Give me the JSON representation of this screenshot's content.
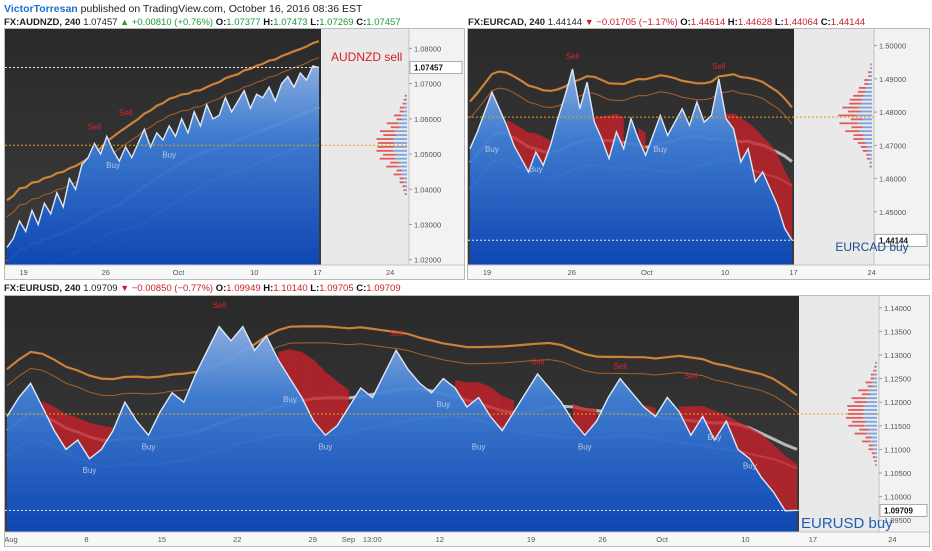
{
  "publish_bar": {
    "author": "VictorTorresan",
    "text": "published on TradingView.com, October 16, 2016 08:36 EST"
  },
  "charts": [
    {
      "id": "audnzd",
      "symbol": "FX:AUDNZD, 240",
      "last": "1.07457",
      "direction": "up",
      "change": "+0.00810 (+0.76%)",
      "open": "1.07377",
      "high": "1.07473",
      "low": "1.07269",
      "close": "1.07457",
      "annotation": "AUDNZD sell",
      "annotation_color": "#d81c22",
      "price_label": "1.07457",
      "y_ticks": [
        "1.08000",
        "1.07000",
        "1.06000",
        "1.05000",
        "1.04000",
        "1.03000",
        "1.02000"
      ],
      "x_ticks": [
        "19",
        "26",
        "Oct",
        "10",
        "17",
        "24"
      ],
      "signal_sell_label": "Sell",
      "signal_buy_label": "Buy",
      "chart_data": {
        "type": "line",
        "title": "FX:AUDNZD, 240",
        "ylim": [
          1.0185,
          1.0855
        ],
        "y_ticks": [
          1.08,
          1.07,
          1.06,
          1.05,
          1.04,
          1.03,
          1.02
        ],
        "x_ticks": [
          "19",
          "26",
          "Oct",
          "10",
          "17",
          "24"
        ],
        "dashed_level": 1.0525,
        "last_price": 1.07457,
        "series": [
          {
            "values": [
              1.0235,
              1.026,
              1.031,
              1.028,
              1.034,
              1.03,
              1.036,
              1.033,
              1.039,
              1.035,
              1.043,
              1.04,
              1.047,
              1.049,
              1.053,
              1.05,
              1.055,
              1.051,
              1.048,
              1.052,
              1.049,
              1.053,
              1.057,
              1.052,
              1.056,
              1.054,
              1.058,
              1.055,
              1.06,
              1.056,
              1.062,
              1.058,
              1.064,
              1.06,
              1.061,
              1.066,
              1.062,
              1.065,
              1.068,
              1.063,
              1.067,
              1.066,
              1.069,
              1.065,
              1.07,
              1.072,
              1.069,
              1.073,
              1.071,
              1.075,
              1.07457
            ]
          }
        ],
        "signals": [
          {
            "type": "Sell",
            "index": 14,
            "value": 1.057
          },
          {
            "type": "Sell",
            "index": 19,
            "value": 1.061
          },
          {
            "type": "Buy",
            "index": 17,
            "value": 1.046
          },
          {
            "type": "Buy",
            "index": 26,
            "value": 1.049
          }
        ]
      }
    },
    {
      "id": "eurcad",
      "symbol": "FX:EURCAD, 240",
      "last": "1.44144",
      "direction": "down",
      "change": "−0.01705 (−1.17%)",
      "open": "1.44614",
      "high": "1.44628",
      "low": "1.44064",
      "close": "1.44144",
      "annotation": "EURCAD buy",
      "annotation_color": "#1f4a8c",
      "price_label": "1.44144",
      "y_ticks": [
        "1.50000",
        "1.49000",
        "1.48000",
        "1.47000",
        "1.46000",
        "1.45000"
      ],
      "x_ticks": [
        "19",
        "26",
        "Oct",
        "10",
        "17",
        "24"
      ],
      "signal_sell_label": "Sell",
      "signal_buy_label": "Buy",
      "chart_data": {
        "type": "line",
        "title": "FX:EURCAD, 240",
        "ylim": [
          1.434,
          1.505
        ],
        "y_ticks": [
          1.5,
          1.49,
          1.48,
          1.47,
          1.46,
          1.45
        ],
        "x_ticks": [
          "19",
          "26",
          "Oct",
          "10",
          "17",
          "24"
        ],
        "dashed_level": 1.4785,
        "last_price": 1.44144,
        "series": [
          {
            "values": [
              1.469,
              1.474,
              1.48,
              1.486,
              1.481,
              1.476,
              1.47,
              1.466,
              1.462,
              1.468,
              1.464,
              1.47,
              1.478,
              1.485,
              1.493,
              1.481,
              1.489,
              1.477,
              1.472,
              1.466,
              1.474,
              1.469,
              1.478,
              1.472,
              1.467,
              1.473,
              1.479,
              1.473,
              1.477,
              1.481,
              1.476,
              1.483,
              1.477,
              1.479,
              1.49,
              1.478,
              1.475,
              1.465,
              1.469,
              1.459,
              1.462,
              1.457,
              1.452,
              1.445,
              1.44144
            ]
          }
        ],
        "signals": [
          {
            "type": "Sell",
            "index": 14,
            "value": 1.496
          },
          {
            "type": "Sell",
            "index": 34,
            "value": 1.493
          },
          {
            "type": "Buy",
            "index": 3,
            "value": 1.468
          },
          {
            "type": "Buy",
            "index": 9,
            "value": 1.462
          },
          {
            "type": "Buy",
            "index": 26,
            "value": 1.468
          }
        ]
      }
    },
    {
      "id": "eurusd",
      "symbol": "FX:EURUSD, 240",
      "last": "1.09709",
      "direction": "down",
      "change": "−0.00850 (−0.77%)",
      "open": "1.09949",
      "high": "1.10140",
      "low": "1.09705",
      "close": "1.09709",
      "annotation": "EURUSD buy",
      "annotation_color": "#1e5fb0",
      "price_label": "1.09709",
      "y_ticks": [
        "1.14000",
        "1.13500",
        "1.13000",
        "1.12500",
        "1.12000",
        "1.11500",
        "1.11000",
        "1.10500",
        "1.10000",
        "1.09500"
      ],
      "x_ticks": [
        "Aug",
        "8",
        "15",
        "22",
        "29",
        "Sep",
        "13:00",
        "12",
        "19",
        "26",
        "Oct",
        "10",
        "17",
        "24"
      ],
      "signal_sell_label": "Sell",
      "signal_buy_label": "Buy",
      "chart_data": {
        "type": "line",
        "title": "FX:EURUSD, 240",
        "ylim": [
          1.0925,
          1.1425
        ],
        "y_ticks": [
          1.14,
          1.135,
          1.13,
          1.125,
          1.12,
          1.115,
          1.11,
          1.105,
          1.1,
          1.095
        ],
        "x_ticks": [
          "Aug",
          "8",
          "15",
          "22",
          "29",
          "Sep",
          "13:00",
          "12",
          "19",
          "26",
          "Oct",
          "10",
          "17",
          "24"
        ],
        "dashed_level": 1.1175,
        "last_price": 1.09709,
        "series": [
          {
            "values": [
              1.117,
              1.121,
              1.124,
              1.119,
              1.114,
              1.11,
              1.112,
              1.108,
              1.11,
              1.114,
              1.12,
              1.116,
              1.113,
              1.118,
              1.122,
              1.12,
              1.126,
              1.131,
              1.136,
              1.133,
              1.136,
              1.131,
              1.134,
              1.129,
              1.125,
              1.121,
              1.116,
              1.113,
              1.115,
              1.119,
              1.123,
              1.121,
              1.126,
              1.131,
              1.127,
              1.124,
              1.122,
              1.125,
              1.123,
              1.119,
              1.121,
              1.117,
              1.114,
              1.118,
              1.122,
              1.126,
              1.123,
              1.12,
              1.116,
              1.113,
              1.116,
              1.121,
              1.125,
              1.122,
              1.119,
              1.117,
              1.121,
              1.118,
              1.113,
              1.117,
              1.112,
              1.116,
              1.11,
              1.108,
              1.104,
              1.101,
              1.097,
              1.09709
            ]
          }
        ],
        "signals": [
          {
            "type": "Sell",
            "index": 18,
            "value": 1.14
          },
          {
            "type": "Sell",
            "index": 33,
            "value": 1.134
          },
          {
            "type": "Sell",
            "index": 45,
            "value": 1.128
          },
          {
            "type": "Sell",
            "index": 52,
            "value": 1.127
          },
          {
            "type": "Sell",
            "index": 58,
            "value": 1.125
          },
          {
            "type": "Buy",
            "index": 7,
            "value": 1.105
          },
          {
            "type": "Buy",
            "index": 12,
            "value": 1.11
          },
          {
            "type": "Buy",
            "index": 24,
            "value": 1.12
          },
          {
            "type": "Buy",
            "index": 27,
            "value": 1.11
          },
          {
            "type": "Buy",
            "index": 37,
            "value": 1.119
          },
          {
            "type": "Buy",
            "index": 40,
            "value": 1.11
          },
          {
            "type": "Buy",
            "index": 49,
            "value": 1.11
          },
          {
            "type": "Buy",
            "index": 60,
            "value": 1.112
          },
          {
            "type": "Buy",
            "index": 63,
            "value": 1.106
          }
        ]
      }
    }
  ]
}
